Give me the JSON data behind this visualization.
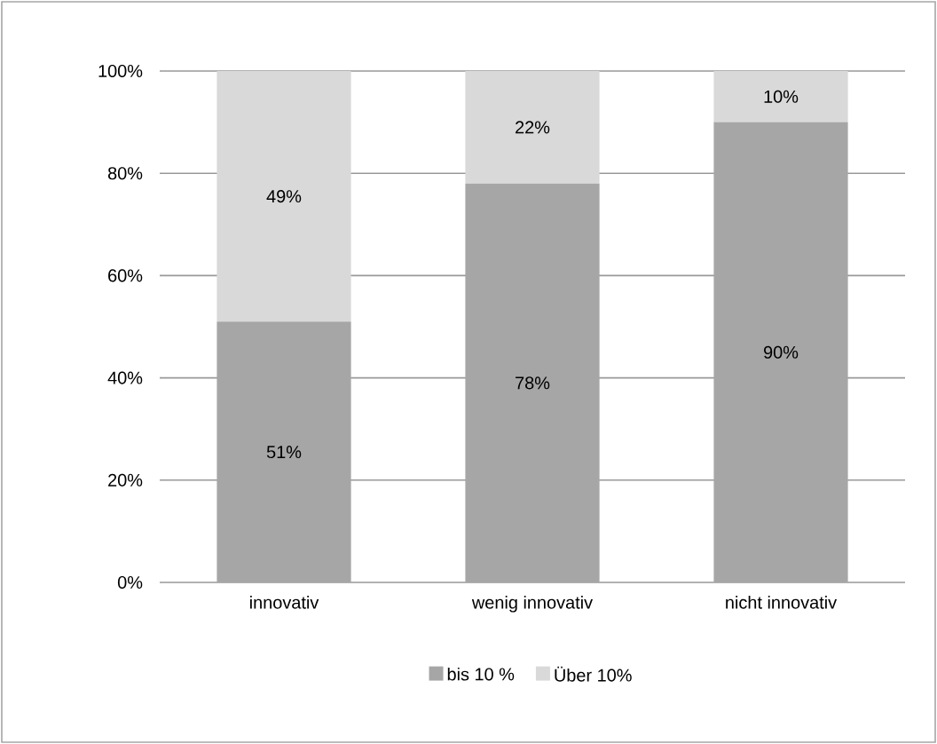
{
  "chart_data": {
    "type": "bar",
    "stacked": true,
    "categories": [
      "innovativ",
      "wenig innovativ",
      "nicht innovativ"
    ],
    "series": [
      {
        "name": "bis 10 %",
        "color": "#a6a6a6",
        "values": [
          51,
          78,
          90
        ],
        "value_labels": [
          "51%",
          "78%",
          "90%"
        ]
      },
      {
        "name": "Über 10%",
        "color": "#d9d9d9",
        "values": [
          49,
          22,
          10
        ],
        "value_labels": [
          "49%",
          "22%",
          "10%"
        ]
      }
    ],
    "ylim": [
      0,
      100
    ],
    "yticks": [
      {
        "value": 0,
        "label": "0%"
      },
      {
        "value": 20,
        "label": "20%"
      },
      {
        "value": 40,
        "label": "40%"
      },
      {
        "value": 60,
        "label": "60%"
      },
      {
        "value": 80,
        "label": "80%"
      },
      {
        "value": 100,
        "label": "100%"
      }
    ],
    "grid": "y",
    "legend": "bottom"
  }
}
